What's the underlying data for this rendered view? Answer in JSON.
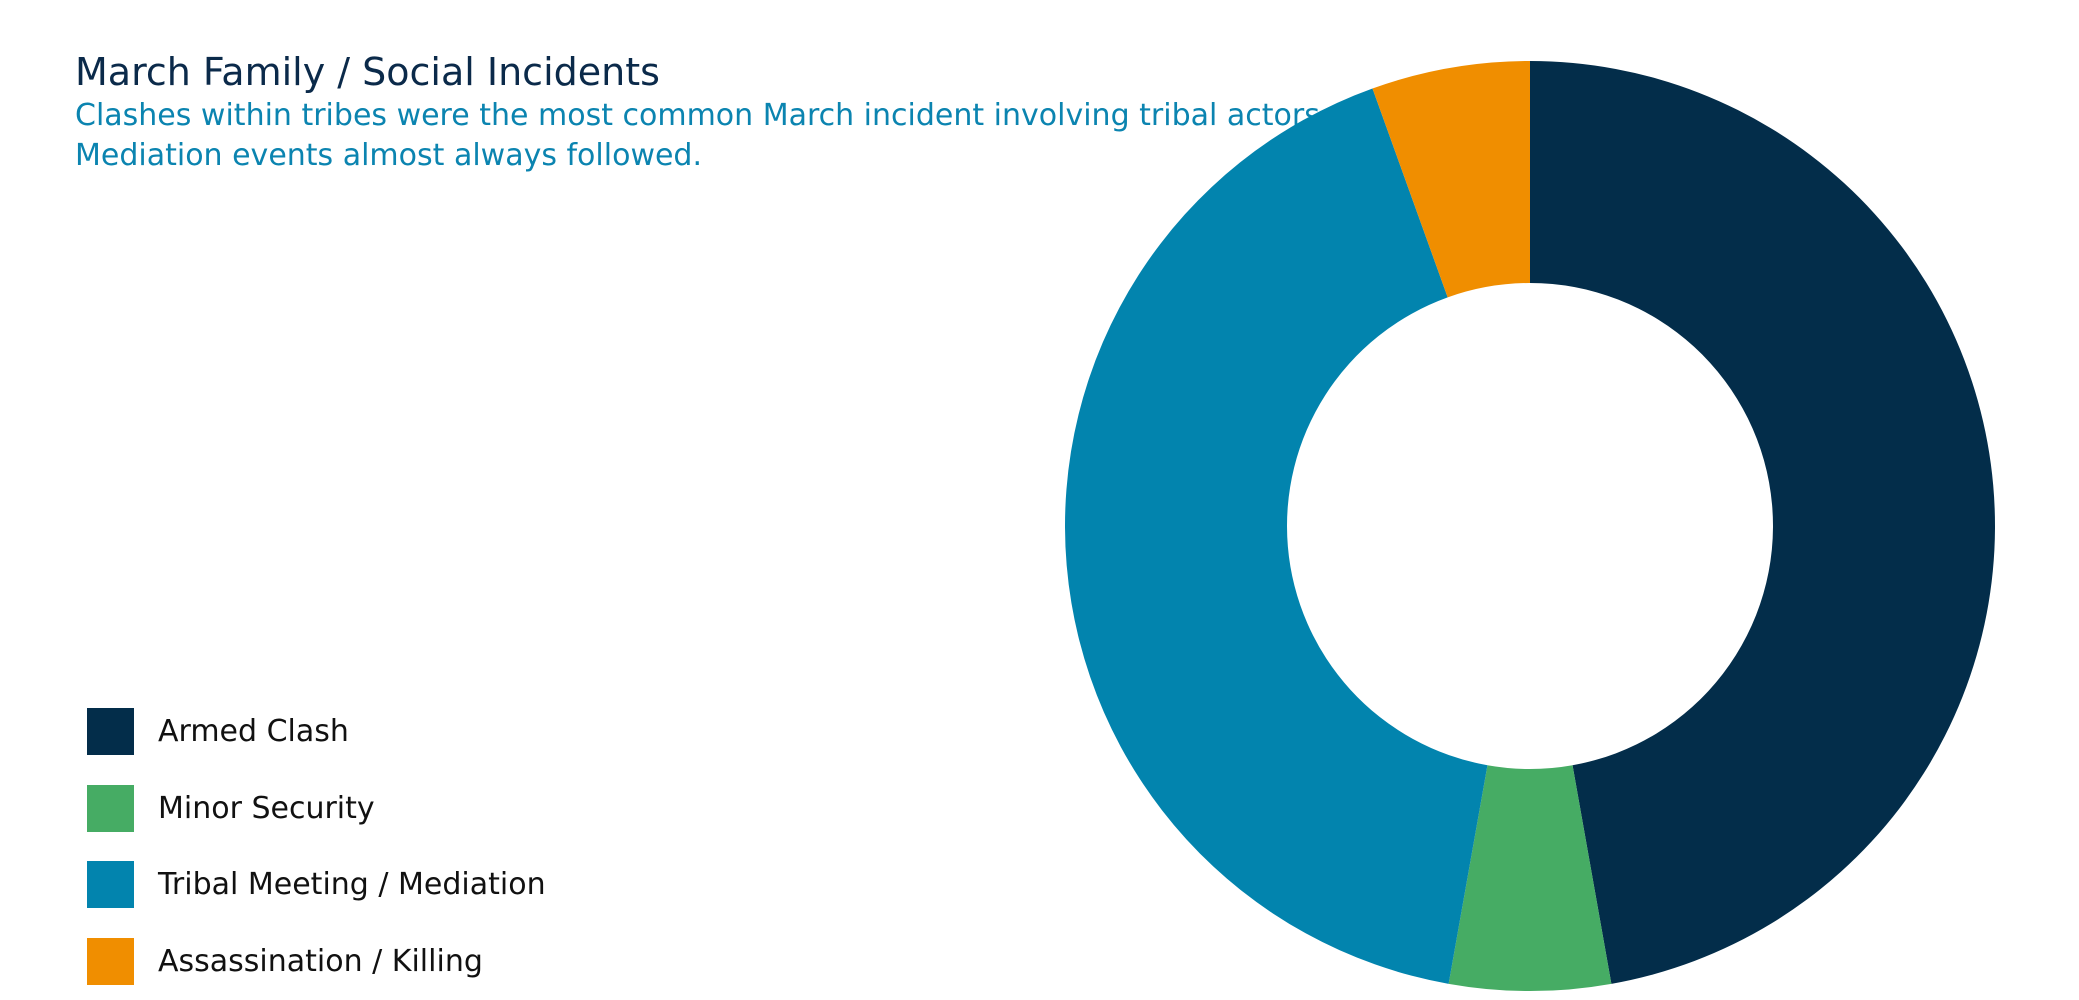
{
  "chart_data": {
    "type": "pie",
    "title": "March Family / Social Incidents",
    "subtitle": [
      "Clashes within tribes were the most common March incident involving tribal actors.",
      "Mediation events almost always followed."
    ],
    "categories": [
      "Armed Clash",
      "Minor Security",
      "Tribal Meeting / Mediation",
      "Assassination / Killing"
    ],
    "values": [
      47.2,
      5.6,
      41.7,
      5.5
    ],
    "colors": [
      "#032d4a",
      "#46ac64",
      "#0284ae",
      "#f08e00"
    ],
    "donut": true,
    "legend_position": "bottom-left"
  }
}
